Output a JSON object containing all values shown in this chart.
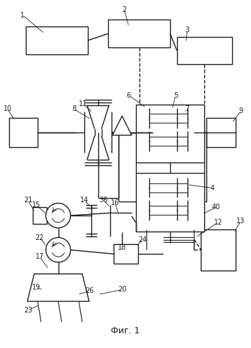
{
  "title": "Фиг. 1",
  "bg_color": "#ffffff",
  "lc": "#1a1a1a",
  "figsize": [
    3.6,
    4.99
  ],
  "dpi": 100
}
